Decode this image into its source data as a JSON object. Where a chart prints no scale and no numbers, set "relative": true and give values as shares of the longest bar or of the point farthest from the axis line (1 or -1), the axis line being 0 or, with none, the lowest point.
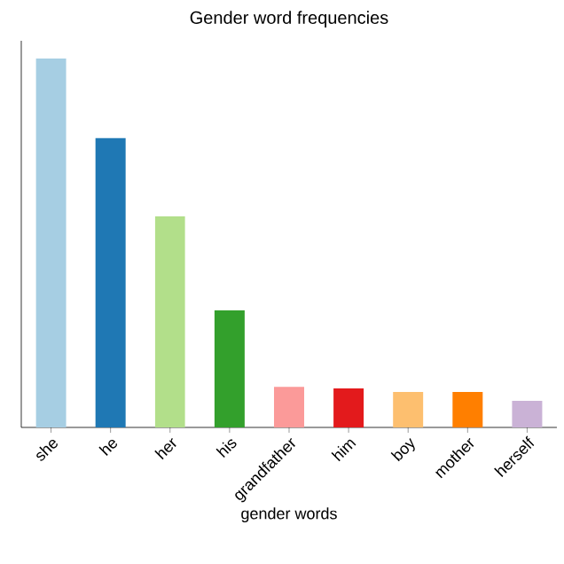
{
  "chart_data": {
    "type": "bar",
    "title": "Gender word frequencies",
    "xlabel": "gender words",
    "relative": true,
    "categories": [
      "she",
      "he",
      "her",
      "his",
      "grandfather",
      "him",
      "boy",
      "mother",
      "herself"
    ],
    "values": [
      1,
      0.784,
      0.572,
      0.317,
      0.11,
      0.106,
      0.096,
      0.096,
      0.072
    ],
    "colors": [
      "#a6cee3",
      "#1f78b4",
      "#b2df8a",
      "#33a02c",
      "#fb9a99",
      "#e31a1c",
      "#fdbf6f",
      "#ff7f00",
      "#cab2d6"
    ]
  }
}
